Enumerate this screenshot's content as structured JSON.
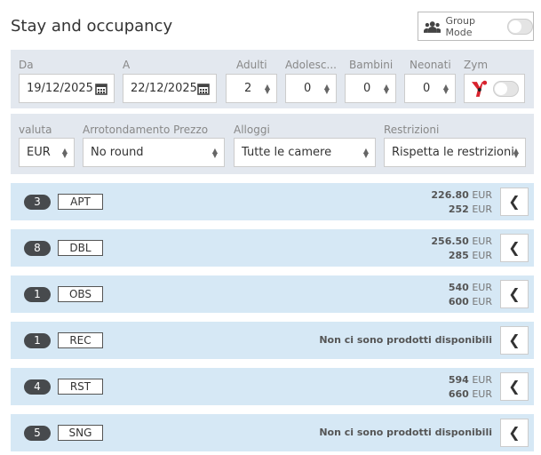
{
  "header": {
    "title": "Stay and occupancy",
    "group_mode_label": "Group Mode",
    "group_mode_on": false
  },
  "filters": {
    "from": {
      "label": "Da",
      "value": "19/12/2025"
    },
    "to": {
      "label": "A",
      "value": "22/12/2025"
    },
    "adults": {
      "label": "Adulti",
      "value": "2"
    },
    "teens": {
      "label": "Adolesc...",
      "value": "0"
    },
    "children": {
      "label": "Bambini",
      "value": "0"
    },
    "infants": {
      "label": "Neonati",
      "value": "0"
    },
    "zym": {
      "label": "Zym",
      "on": false
    },
    "currency": {
      "label": "valuta",
      "value": "EUR"
    },
    "rounding": {
      "label": "Arrotondamento Prezzo",
      "value": "No round"
    },
    "rooms": {
      "label": "Alloggi",
      "value": "Tutte le camere"
    },
    "restrictions": {
      "label": "Restrizioni",
      "value": "Rispetta le restrizioni"
    }
  },
  "rows": [
    {
      "count": "3",
      "code": "APT",
      "price1": "226.80",
      "price2": "252",
      "currency": "EUR"
    },
    {
      "count": "8",
      "code": "DBL",
      "price1": "256.50",
      "price2": "285",
      "currency": "EUR"
    },
    {
      "count": "1",
      "code": "OBS",
      "price1": "540",
      "price2": "600",
      "currency": "EUR"
    },
    {
      "count": "1",
      "code": "REC",
      "message": "Non ci sono prodotti disponibili"
    },
    {
      "count": "4",
      "code": "RST",
      "price1": "594",
      "price2": "660",
      "currency": "EUR"
    },
    {
      "count": "5",
      "code": "SNG",
      "message": "Non ci sono prodotti disponibili"
    }
  ],
  "icons": {
    "group": "users-icon",
    "calendar": "calendar-icon",
    "expand": "chevron-left-icon"
  }
}
